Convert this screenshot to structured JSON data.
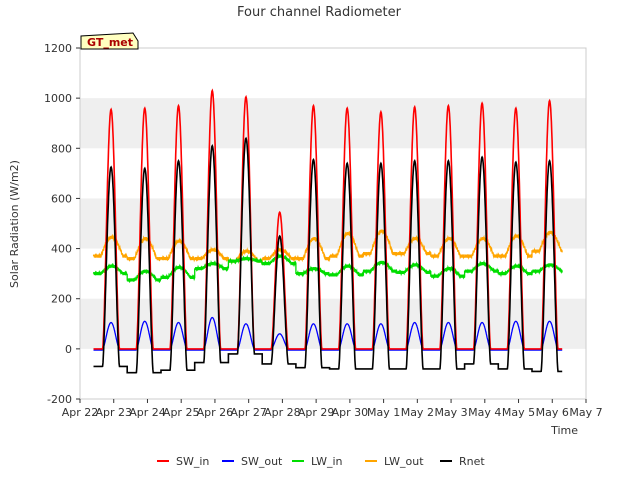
{
  "chart_data": {
    "type": "line",
    "title": "Four channel Radiometer",
    "xlabel": "Time",
    "ylabel": "Solar Radiation (W/m2)",
    "annotation": "GT_met",
    "xlim": [
      0,
      15
    ],
    "ylim": [
      -200,
      1200
    ],
    "x_tick_values": [
      0,
      1,
      2,
      3,
      4,
      5,
      6,
      7,
      8,
      9,
      10,
      11,
      12,
      13,
      14,
      15
    ],
    "x_ticks": [
      "Apr 22",
      "Apr 23",
      "Apr 24",
      "Apr 25",
      "Apr 26",
      "Apr 27",
      "Apr 28",
      "Apr 29",
      "Apr 30",
      "May 1",
      "May 2",
      "May 3",
      "May 4",
      "May 5",
      "May 6",
      "May 7"
    ],
    "y_ticks": [
      -200,
      0,
      200,
      400,
      600,
      800,
      1000,
      1200
    ],
    "grid": "horizontal bands",
    "legend_position": "bottom",
    "days": [
      "Apr 22",
      "Apr 23",
      "Apr 24",
      "Apr 25",
      "Apr 26",
      "Apr 27",
      "Apr 28",
      "Apr 29",
      "Apr 30",
      "May 1",
      "May 2",
      "May 3",
      "May 4",
      "May 5"
    ],
    "series": [
      {
        "name": "SW_in",
        "color": "#ff0000",
        "daily_peak": [
          955,
          960,
          970,
          1030,
          1005,
          545,
          970,
          960,
          945,
          965,
          970,
          980,
          960,
          990
        ],
        "night_value": 0
      },
      {
        "name": "SW_out",
        "color": "#0000ff",
        "daily_peak": [
          105,
          110,
          105,
          125,
          100,
          60,
          100,
          100,
          100,
          105,
          105,
          105,
          110,
          110
        ],
        "night_value": -5
      },
      {
        "name": "LW_in",
        "color": "#00dd00",
        "daily_peak": [
          330,
          310,
          325,
          340,
          360,
          370,
          320,
          330,
          345,
          335,
          320,
          340,
          330,
          335
        ],
        "night_value": [
          300,
          275,
          285,
          320,
          350,
          340,
          300,
          295,
          310,
          305,
          290,
          310,
          300,
          310
        ]
      },
      {
        "name": "LW_out",
        "color": "#ffa500",
        "daily_peak": [
          445,
          440,
          430,
          395,
          390,
          395,
          440,
          460,
          470,
          440,
          440,
          440,
          450,
          465
        ],
        "night_value": [
          370,
          360,
          360,
          360,
          350,
          360,
          360,
          370,
          380,
          380,
          370,
          370,
          370,
          390
        ]
      },
      {
        "name": "Rnet",
        "color": "#000000",
        "daily_peak": [
          725,
          720,
          750,
          810,
          840,
          450,
          755,
          740,
          740,
          750,
          750,
          765,
          745,
          750
        ],
        "night_value": [
          -70,
          -95,
          -85,
          -55,
          -20,
          -60,
          -75,
          -80,
          -80,
          -80,
          -80,
          -60,
          -80,
          -90
        ]
      }
    ]
  }
}
